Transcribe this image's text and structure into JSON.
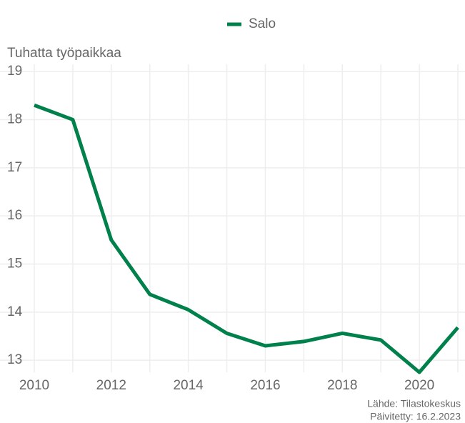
{
  "chart_data": {
    "type": "line",
    "y_label": "Tuhatta työpaikkaa",
    "x": [
      2010,
      2011,
      2012,
      2013,
      2014,
      2015,
      2016,
      2017,
      2018,
      2019,
      2020,
      2021
    ],
    "series": [
      {
        "name": "Salo",
        "color": "#00804a",
        "values": [
          18.3,
          18.0,
          15.5,
          14.37,
          14.05,
          13.56,
          13.3,
          13.39,
          13.56,
          13.42,
          12.75,
          13.68
        ]
      }
    ],
    "xlim": [
      2010,
      2021
    ],
    "xticks": [
      2010,
      2012,
      2014,
      2016,
      2018,
      2020
    ],
    "xminorticks": [
      2011,
      2013,
      2015,
      2017,
      2019,
      2021
    ],
    "ylim": [
      12.75,
      19.15
    ],
    "yticks": [
      13,
      14,
      15,
      16,
      17,
      18,
      19
    ],
    "grid": true,
    "legend": "top",
    "source": "Lähde: Tilastokeskus",
    "updated": "Päivitetty: 16.2.2023"
  }
}
